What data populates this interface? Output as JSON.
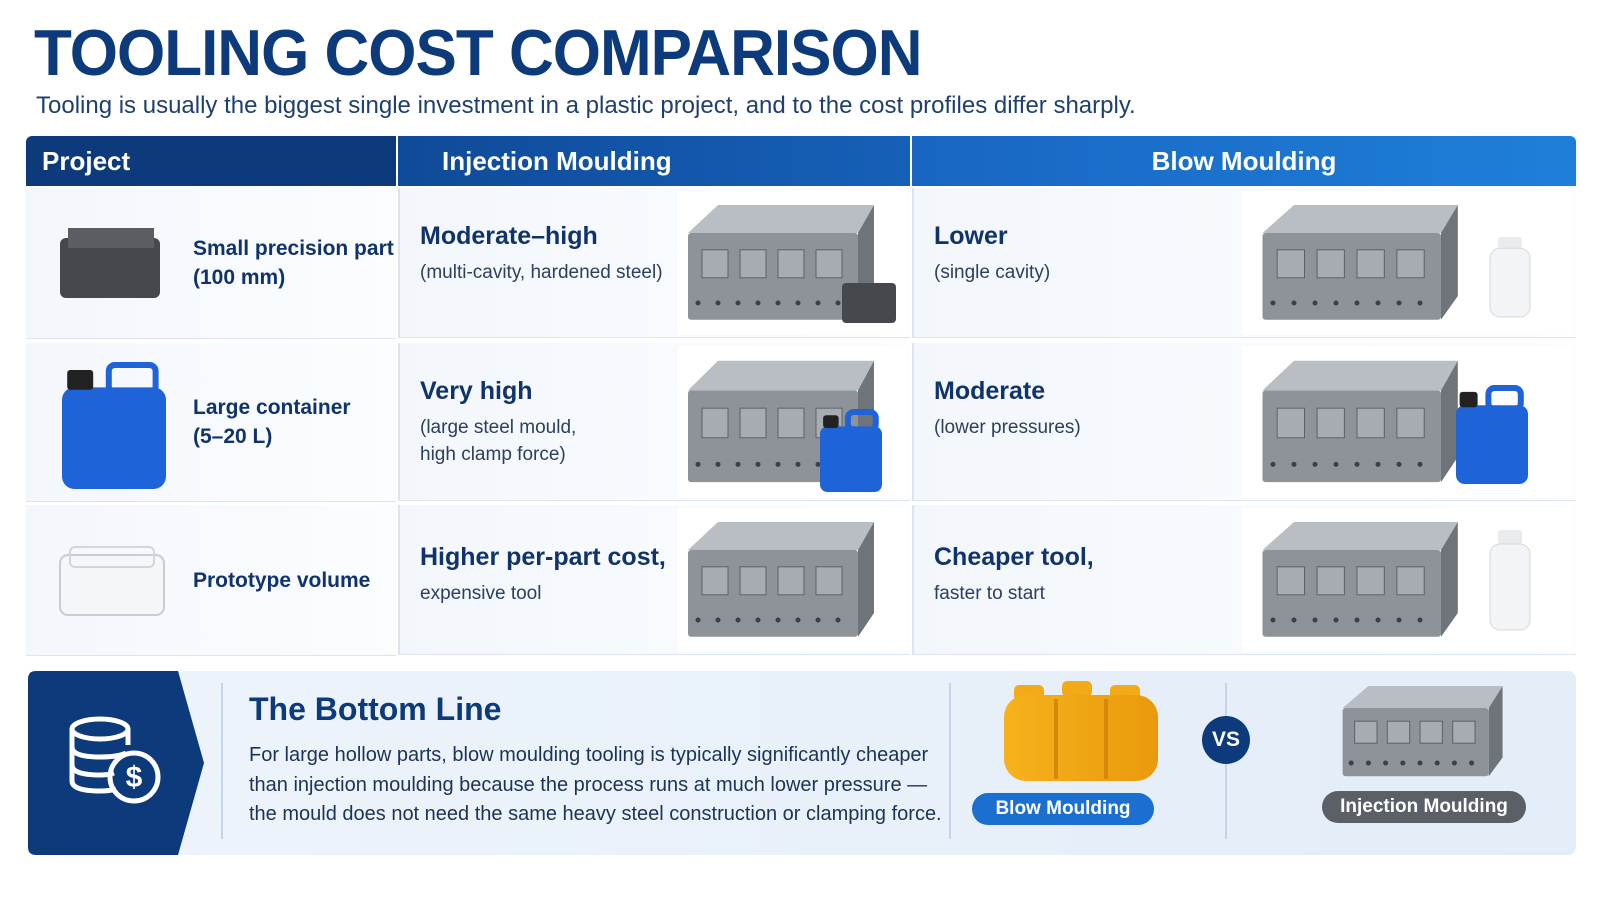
{
  "header": {
    "title": "TOOLING COST COMPARISON",
    "subtitle": "Tooling is usually the biggest single investment in a plastic project, and to the cost profiles differ sharply."
  },
  "table": {
    "headers": [
      "Project",
      "Injection Moulding",
      "Blow Moulding"
    ],
    "rows": [
      {
        "project": [
          "Small precision part",
          "(100 mm)"
        ],
        "injection": {
          "title": "Moderate–high",
          "detail": [
            "(multi-cavity, hardened steel)"
          ]
        },
        "blow": {
          "title": "Lower",
          "detail": [
            "(single cavity)"
          ]
        }
      },
      {
        "project": [
          "Large container",
          "(5–20 L)"
        ],
        "injection": {
          "title": "Very high",
          "detail": [
            "(large steel mould,",
            "high clamp force)"
          ]
        },
        "blow": {
          "title": "Moderate",
          "detail": [
            "(lower pressures)"
          ]
        }
      },
      {
        "project": [
          "Prototype volume"
        ],
        "injection": {
          "title": "Higher per-part cost,",
          "detail": [
            "expensive tool"
          ]
        },
        "blow": {
          "title": "Cheaper tool,",
          "detail": [
            "faster to start"
          ]
        }
      }
    ]
  },
  "bottom": {
    "title": "The Bottom Line",
    "text": [
      "For large hollow parts, blow moulding tooling is typically significantly cheaper",
      "than injection moulding because the process runs at much lower pressure —",
      "the mould does not need the same heavy steel construction or clamping force."
    ],
    "left_label": "Blow Moulding",
    "vs": "VS",
    "right_label": "Injection Moulding"
  }
}
